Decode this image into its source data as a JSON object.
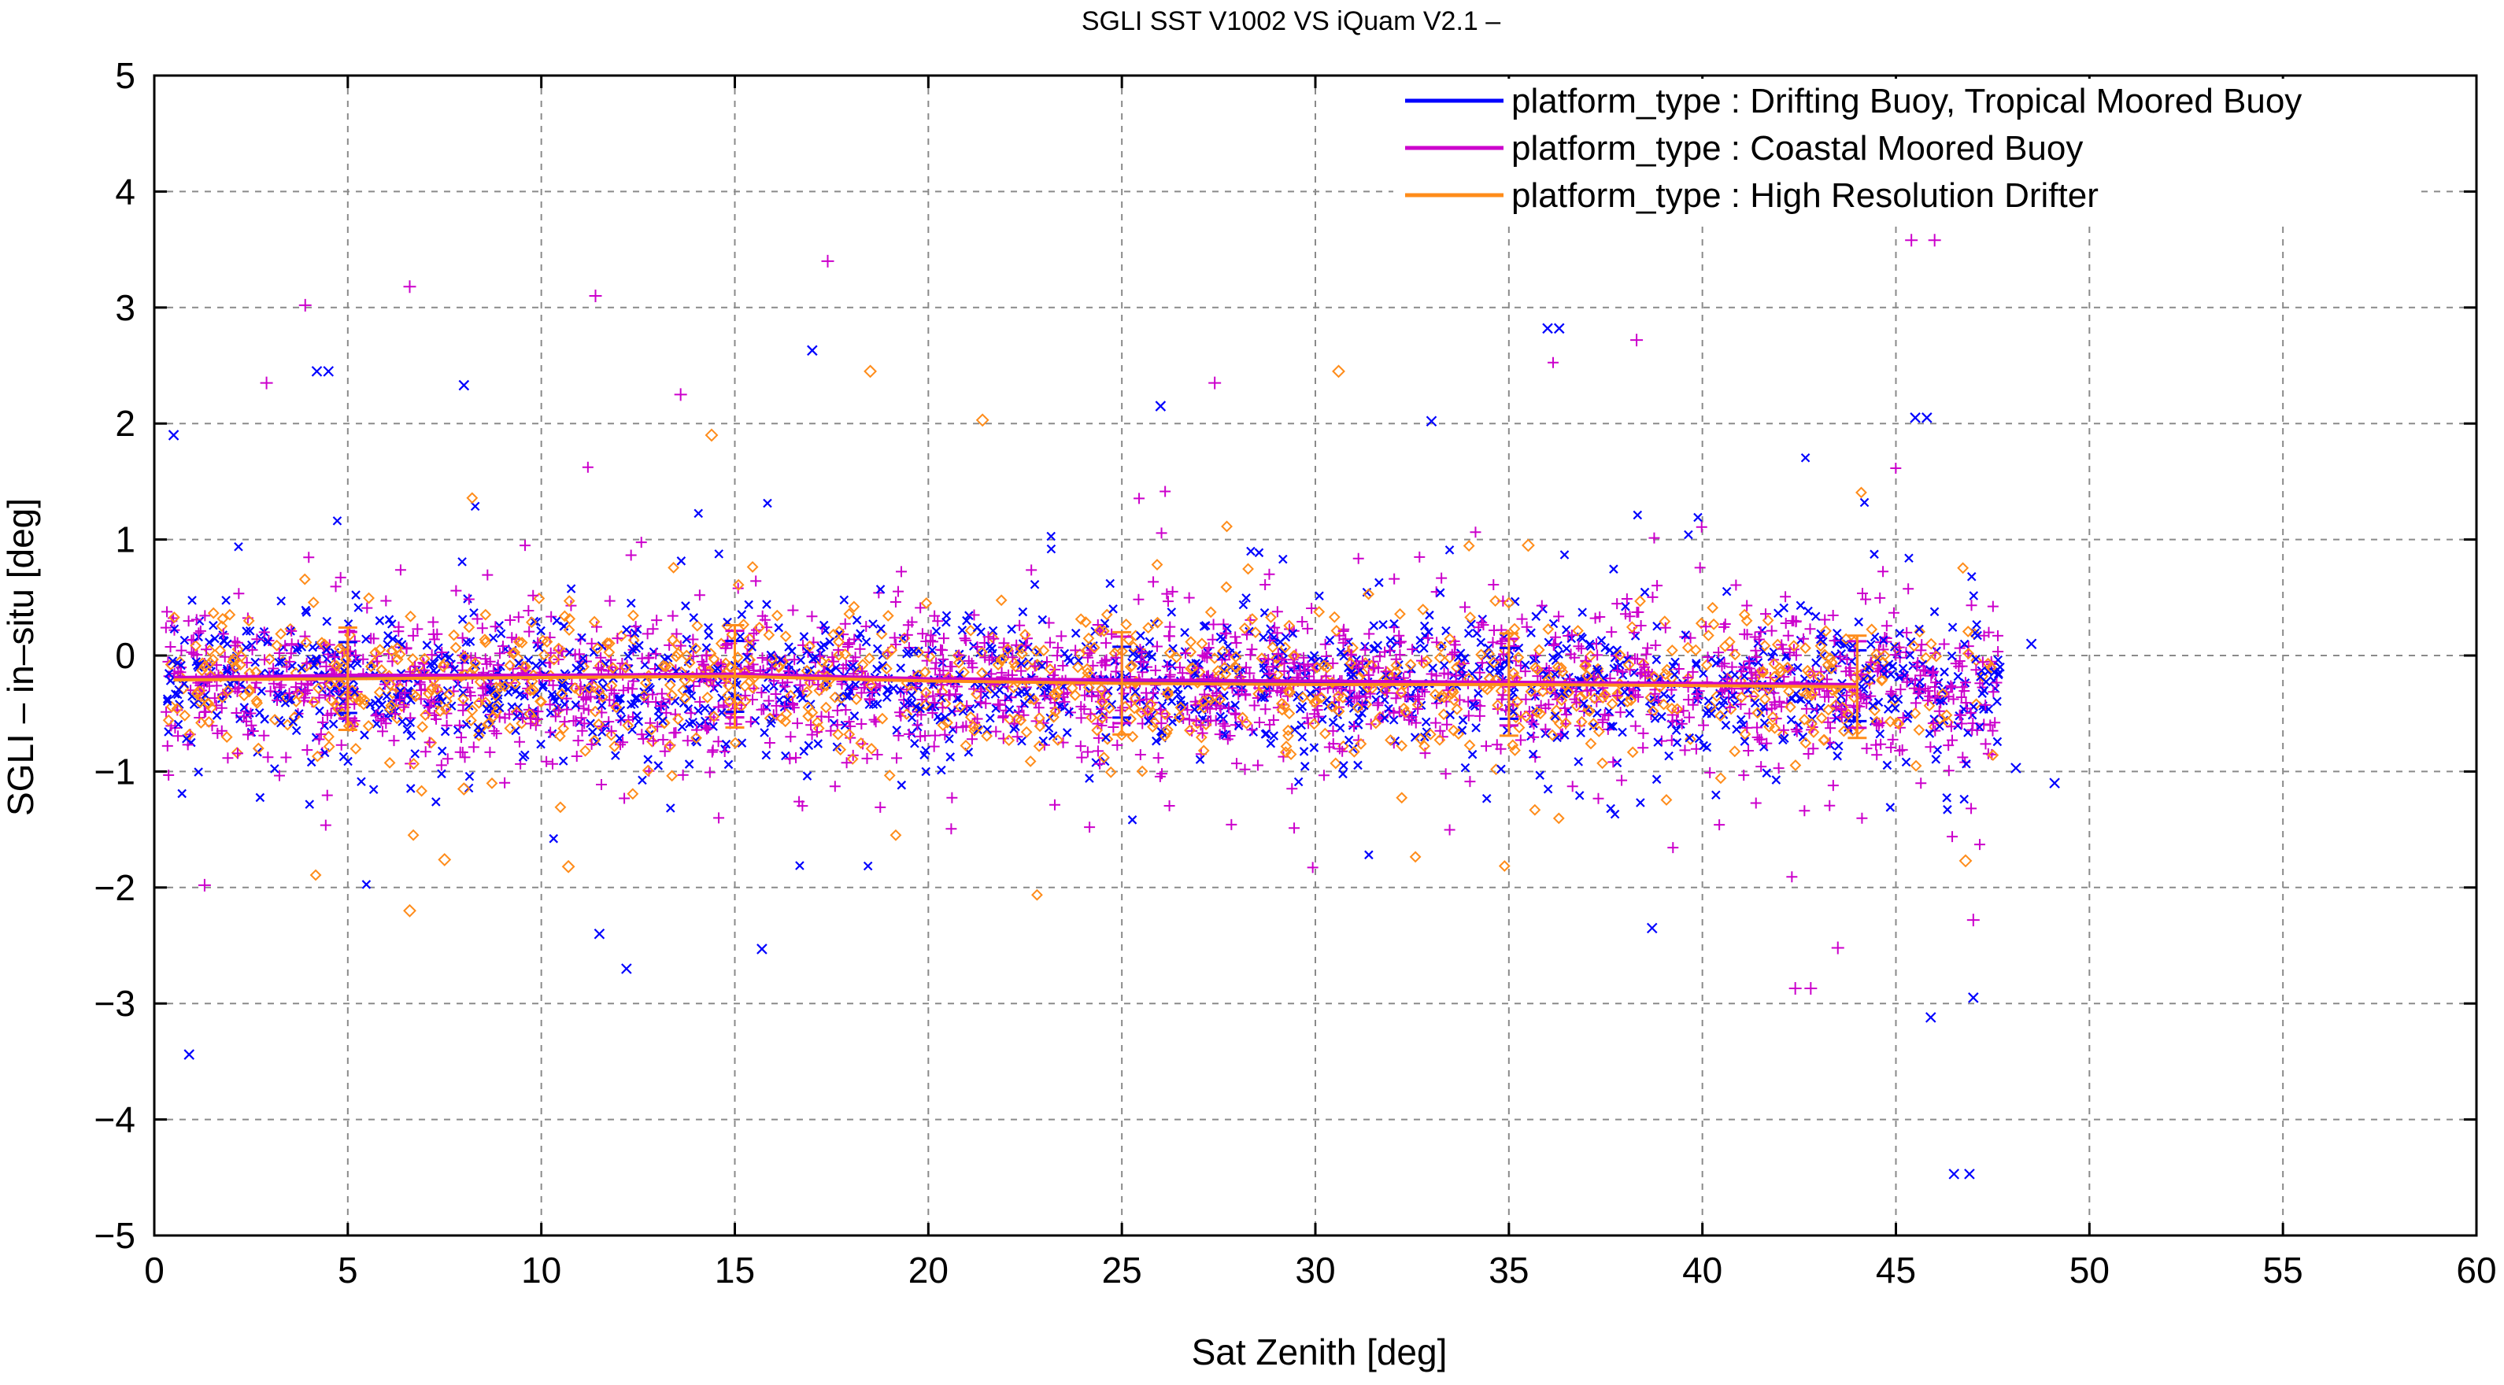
{
  "chart_data": {
    "type": "scatter",
    "title": "SGLI SST V1002 VS iQuam V2.1  –",
    "xlabel": "Sat Zenith [deg]",
    "ylabel": "SGLI – in–situ [deg]",
    "xlim": [
      0,
      60
    ],
    "ylim": [
      -5,
      5
    ],
    "xticks": [
      0,
      5,
      10,
      15,
      20,
      25,
      30,
      35,
      40,
      45,
      50,
      55,
      60
    ],
    "xtick_labels": [
      "0",
      "5",
      "10",
      "15",
      "20",
      "25",
      "30",
      "35",
      "40",
      "45",
      "50",
      "55",
      "60"
    ],
    "yticks": [
      -5,
      -4,
      -3,
      -2,
      -1,
      0,
      1,
      2,
      3,
      4,
      5
    ],
    "ytick_labels": [
      "−5",
      "−4",
      "−3",
      "−2",
      "−1",
      "0",
      "1",
      "2",
      "3",
      "4",
      "5"
    ],
    "grid": true,
    "legend_position": "top-right",
    "series": [
      {
        "name": "platform_type : Drifting Buoy, Tropical Moored Buoy",
        "color": "#0000ff",
        "marker": "x",
        "mean_line": {
          "x": [
            0.5,
            5,
            10,
            15,
            20,
            25,
            30,
            35,
            40,
            44
          ],
          "y": [
            -0.2,
            -0.19,
            -0.18,
            -0.18,
            -0.21,
            -0.23,
            -0.24,
            -0.24,
            -0.25,
            -0.26
          ]
        },
        "outliers": [
          {
            "x": 0.5,
            "y": 1.9
          },
          {
            "x": 0.9,
            "y": -3.44
          },
          {
            "x": 4.2,
            "y": 2.45
          },
          {
            "x": 4.5,
            "y": 2.45
          },
          {
            "x": 8,
            "y": 2.33
          },
          {
            "x": 11.5,
            "y": -2.4
          },
          {
            "x": 12.2,
            "y": -2.7
          },
          {
            "x": 15.7,
            "y": -2.53
          },
          {
            "x": 17,
            "y": 2.63
          },
          {
            "x": 26,
            "y": 2.15
          },
          {
            "x": 33,
            "y": 2.02
          },
          {
            "x": 36,
            "y": 2.82
          },
          {
            "x": 36.3,
            "y": 2.82
          },
          {
            "x": 38.7,
            "y": -2.35
          },
          {
            "x": 45.5,
            "y": 2.05
          },
          {
            "x": 45.8,
            "y": 2.05
          },
          {
            "x": 45.9,
            "y": -3.12
          },
          {
            "x": 46.5,
            "y": -4.47
          },
          {
            "x": 46.9,
            "y": -4.47
          },
          {
            "x": 47,
            "y": -2.95
          },
          {
            "x": 48.5,
            "y": 0.1
          },
          {
            "x": 49.1,
            "y": -1.1
          },
          {
            "x": 48.1,
            "y": -0.97
          }
        ]
      },
      {
        "name": "platform_type : Coastal Moored Buoy",
        "color": "#cc00cc",
        "marker": "+",
        "mean_line": {
          "x": [
            0.5,
            5,
            10,
            15,
            20,
            25,
            30,
            35,
            40,
            44
          ],
          "y": [
            -0.19,
            -0.17,
            -0.17,
            -0.16,
            -0.2,
            -0.21,
            -0.22,
            -0.23,
            -0.24,
            -0.25
          ]
        },
        "outliers": [
          {
            "x": 3.9,
            "y": 3.02
          },
          {
            "x": 6.6,
            "y": 3.18
          },
          {
            "x": 11.4,
            "y": 3.1
          },
          {
            "x": 17.4,
            "y": 3.4
          },
          {
            "x": 45.4,
            "y": 3.58
          },
          {
            "x": 46,
            "y": 3.58
          },
          {
            "x": 38.3,
            "y": 2.72
          },
          {
            "x": 27.4,
            "y": 2.35
          },
          {
            "x": 2.9,
            "y": 2.35
          },
          {
            "x": 13.6,
            "y": 2.25
          },
          {
            "x": 42.4,
            "y": -2.87
          },
          {
            "x": 42.8,
            "y": -2.87
          },
          {
            "x": 43.5,
            "y": -2.52
          },
          {
            "x": 47,
            "y": -2.28
          },
          {
            "x": 1.3,
            "y": -1.98
          }
        ]
      },
      {
        "name": "platform_type : High Resolution Drifter",
        "color": "#ff8c1a",
        "marker": "diamond",
        "mean_line": {
          "x": [
            0.5,
            5,
            10,
            15,
            20,
            25,
            30,
            35,
            40,
            44
          ],
          "y": [
            -0.21,
            -0.2,
            -0.19,
            -0.18,
            -0.22,
            -0.24,
            -0.25,
            -0.25,
            -0.26,
            -0.27
          ]
        },
        "outliers": [
          {
            "x": 18.5,
            "y": 2.45
          },
          {
            "x": 30.6,
            "y": 2.45
          },
          {
            "x": 21.4,
            "y": 2.03
          },
          {
            "x": 14.4,
            "y": 1.9
          },
          {
            "x": 6.6,
            "y": -2.2
          },
          {
            "x": 8,
            "y": -1.15
          },
          {
            "x": 10.7,
            "y": -1.82
          },
          {
            "x": 7.5,
            "y": -1.76
          },
          {
            "x": 46.8,
            "y": -1.77
          },
          {
            "x": 35.5,
            "y": 0.95
          }
        ]
      }
    ],
    "point_cloud": {
      "x_range": [
        0.3,
        47.7
      ],
      "core_y_center": -0.22,
      "core_y_spread": 0.3,
      "note_visible": false
    }
  }
}
